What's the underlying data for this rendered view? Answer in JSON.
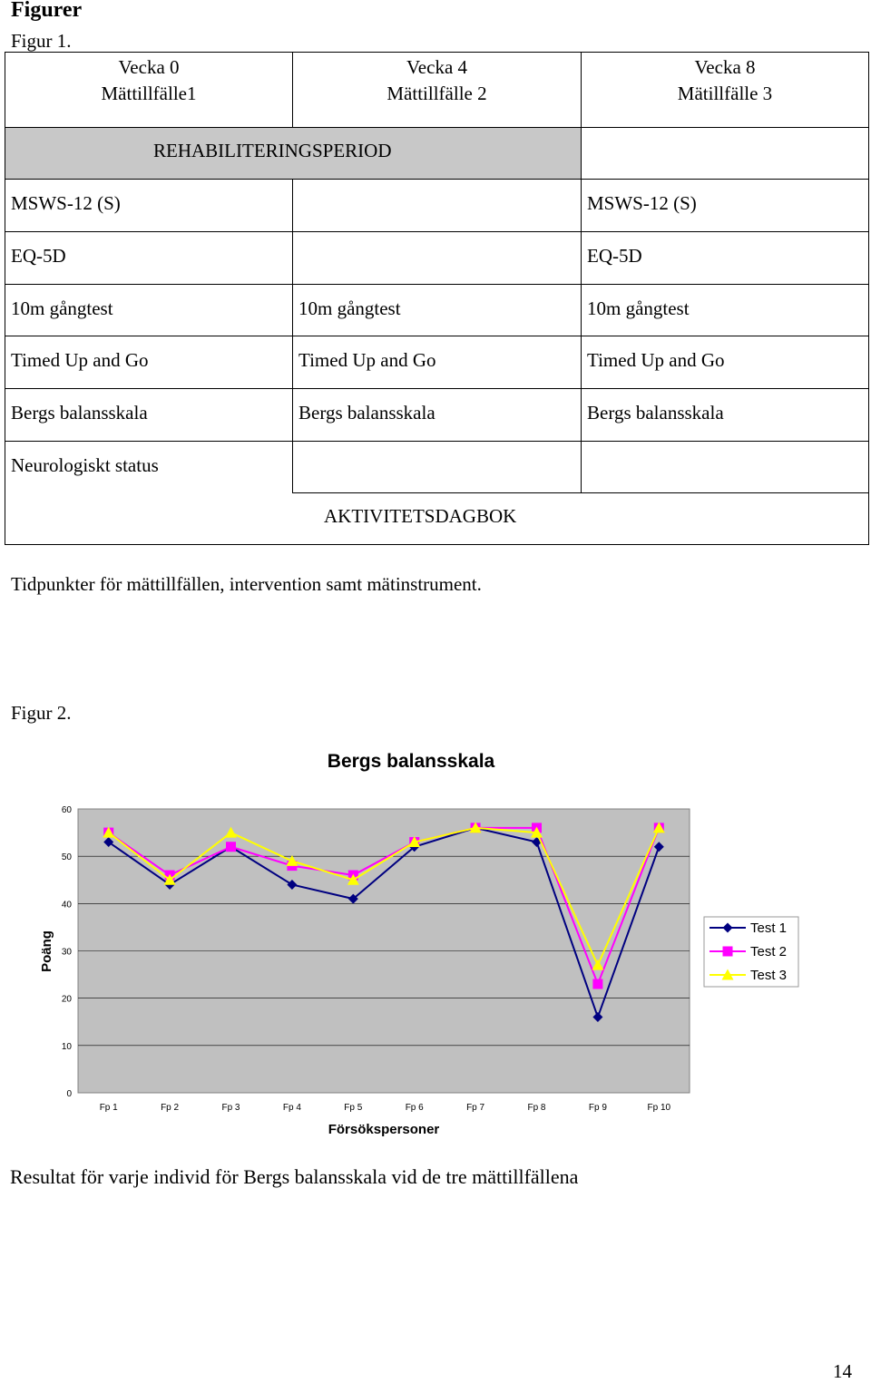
{
  "page": {
    "heading": "Figurer",
    "figure1_label": "Figur 1.",
    "figure1_caption": "Tidpunkter för mättillfällen, intervention samt mätinstrument.",
    "figure2_label": "Figur 2.",
    "figure2_caption": "Resultat för varje individ för Bergs balansskala vid de tre mättillfällena",
    "page_number": "14"
  },
  "table": {
    "columns": [
      {
        "week": "Vecka 0",
        "occasion": "Mättillfälle1"
      },
      {
        "week": "Vecka 4",
        "occasion": "Mättillfälle 2"
      },
      {
        "week": "Vecka 8",
        "occasion": "Mätillfälle 3"
      }
    ],
    "rehab_period": "REHABILITERINGSPERIOD",
    "rows": [
      {
        "c1": "MSWS-12 (S)",
        "c2": "",
        "c3": "MSWS-12 (S)"
      },
      {
        "c1": "EQ-5D",
        "c2": "",
        "c3": "EQ-5D"
      },
      {
        "c1": "10m gångtest",
        "c2": "10m gångtest",
        "c3": "10m gångtest"
      },
      {
        "c1": "Timed Up and Go",
        "c2": "Timed Up and Go",
        "c3": "Timed Up and Go"
      },
      {
        "c1": "Bergs balansskala",
        "c2": "Bergs balansskala",
        "c3": "Bergs balansskala"
      },
      {
        "c1": "Neurologiskt status",
        "c2": "",
        "c3": ""
      }
    ],
    "diary": "AKTIVITETSDAGBOK",
    "colors": {
      "rehab_fill": "#c8c8c8"
    }
  },
  "chart_data": {
    "type": "line",
    "title": "Bergs balansskala",
    "xlabel": "Försökspersoner",
    "ylabel": "Poäng",
    "categories": [
      "Fp 1",
      "Fp 2",
      "Fp 3",
      "Fp 4",
      "Fp 5",
      "Fp 6",
      "Fp 7",
      "Fp 8",
      "Fp 9",
      "Fp 10"
    ],
    "ylim": [
      0,
      60
    ],
    "yticks": [
      0,
      10,
      20,
      30,
      40,
      50,
      60
    ],
    "grid": "horizontal",
    "plot_background": "#c0c0c0",
    "legend_position": "right",
    "series": [
      {
        "name": "Test 1",
        "marker": "diamond",
        "color": "#000080",
        "values": [
          53,
          44,
          52,
          44,
          41,
          52,
          56,
          53,
          16,
          52
        ]
      },
      {
        "name": "Test 2",
        "marker": "square",
        "color": "#ff00ff",
        "values": [
          55,
          46,
          52,
          48,
          46,
          53,
          56,
          56,
          23,
          56
        ]
      },
      {
        "name": "Test 3",
        "marker": "triangle",
        "color": "#ffff00",
        "values": [
          55,
          45,
          55,
          49,
          45,
          53,
          56,
          55,
          27,
          56
        ]
      }
    ]
  }
}
